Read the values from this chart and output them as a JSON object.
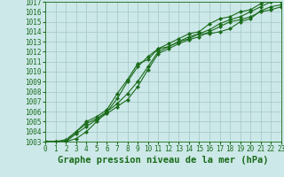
{
  "title": "Graphe pression niveau de la mer (hPa)",
  "bg_color": "#cce8e8",
  "grid_color": "#aacccc",
  "line_color": "#1a6b1a",
  "x_values": [
    0,
    1,
    2,
    3,
    4,
    5,
    6,
    7,
    8,
    9,
    10,
    11,
    12,
    13,
    14,
    15,
    16,
    17,
    18,
    19,
    20,
    21,
    22,
    23
  ],
  "series": [
    [
      1003,
      1003,
      1003,
      1003.3,
      1004,
      1005,
      1006,
      1007.3,
      1009,
      1010.5,
      1011.5,
      1012.3,
      1012.5,
      1013.0,
      1013.3,
      1013.8,
      1013.8,
      1014.0,
      1014.3,
      1015.0,
      1015.3,
      1016.1,
      1016.5,
      1016.7
    ],
    [
      1003,
      1003,
      1003,
      1003.8,
      1004.5,
      1005.2,
      1005.8,
      1006.5,
      1007.2,
      1008.5,
      1010.2,
      1011.8,
      1012.3,
      1012.8,
      1013.2,
      1013.5,
      1014.0,
      1014.5,
      1015.0,
      1015.2,
      1015.5,
      1016.0,
      1016.2,
      1016.5
    ],
    [
      1003,
      1003,
      1003,
      1004.0,
      1004.8,
      1005.3,
      1006.0,
      1006.8,
      1007.8,
      1009.0,
      1010.5,
      1012.0,
      1012.5,
      1013.0,
      1013.5,
      1013.8,
      1014.2,
      1014.8,
      1015.2,
      1015.5,
      1016.0,
      1016.5,
      1017.0,
      1017.0
    ],
    [
      1003,
      1003,
      1003.2,
      1004.0,
      1005.0,
      1005.5,
      1006.2,
      1007.8,
      1009.2,
      1010.8,
      1011.2,
      1012.3,
      1012.8,
      1013.3,
      1013.8,
      1014.0,
      1014.8,
      1015.3,
      1015.5,
      1016.0,
      1016.2,
      1016.8,
      1017.2,
      1017.2
    ]
  ],
  "ylim": [
    1003,
    1017
  ],
  "yticks": [
    1003,
    1004,
    1005,
    1006,
    1007,
    1008,
    1009,
    1010,
    1011,
    1012,
    1013,
    1014,
    1015,
    1016,
    1017
  ],
  "xlim": [
    0,
    23
  ],
  "xticks": [
    0,
    1,
    2,
    3,
    4,
    5,
    6,
    7,
    8,
    9,
    10,
    11,
    12,
    13,
    14,
    15,
    16,
    17,
    18,
    19,
    20,
    21,
    22,
    23
  ],
  "tick_fontsize": 5.5,
  "title_fontsize": 7.5,
  "lw": 0.8,
  "markersize": 2.2
}
